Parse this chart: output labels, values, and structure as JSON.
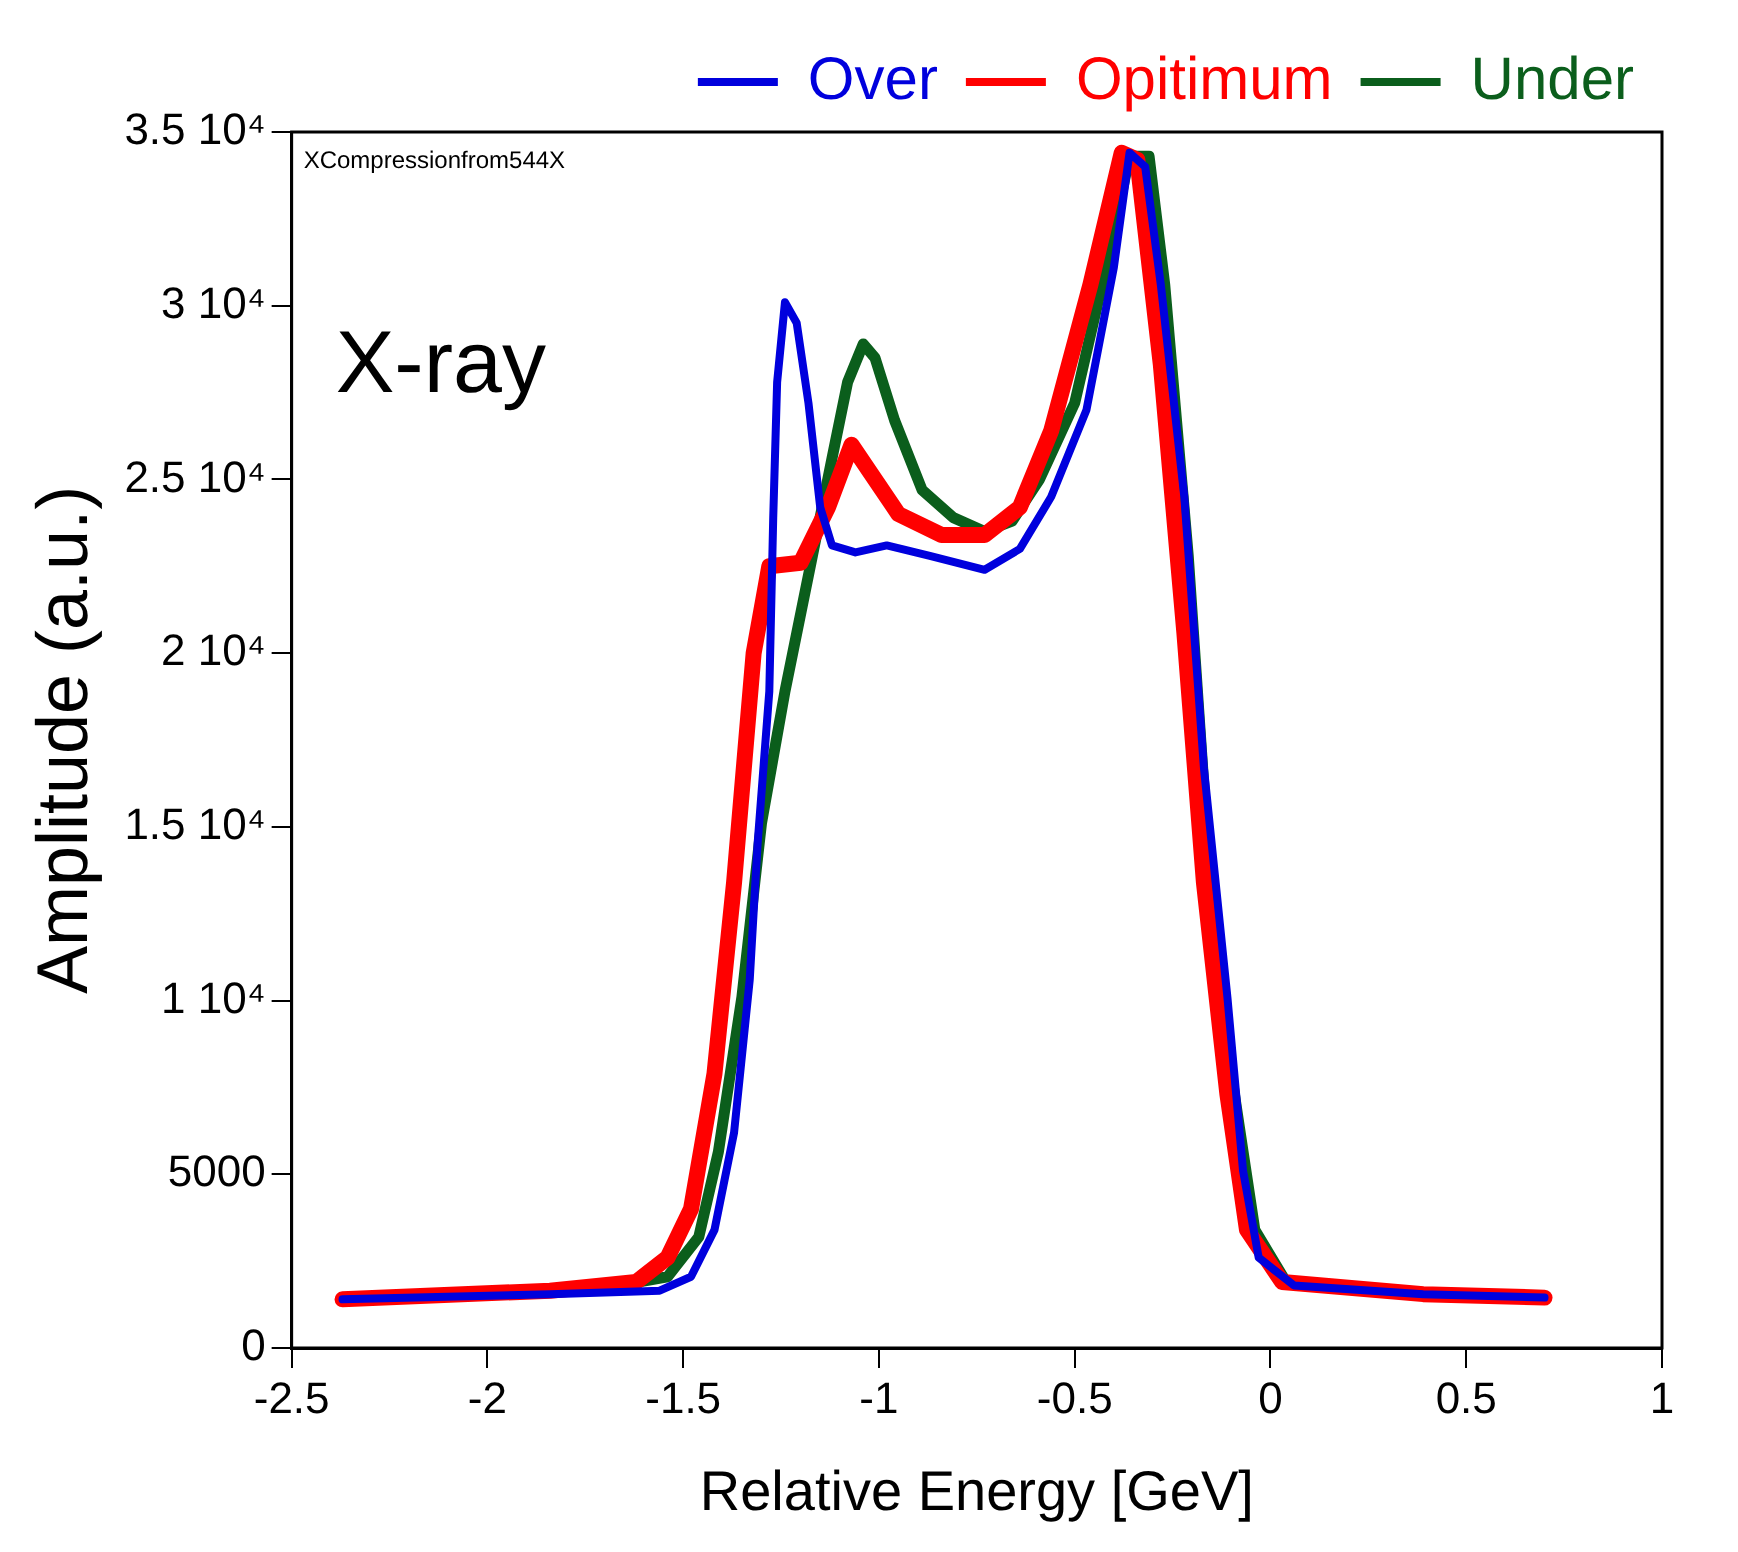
{
  "chart_data": {
    "type": "line",
    "xlabel": "Relative Energy [GeV]",
    "ylabel": "Amplitude (a.u.)",
    "annotations": [
      "XCompressionfrom544X",
      "X-ray"
    ],
    "xlim": [
      -2.5,
      1
    ],
    "ylim": [
      0,
      35000
    ],
    "xticks": [
      -2.5,
      -2,
      -1.5,
      -1,
      -0.5,
      0,
      0.5,
      1
    ],
    "yticks": [
      0,
      5000,
      {
        "value": 10000,
        "label": "1 10⁴"
      },
      {
        "value": 15000,
        "label": "1.5 10⁴"
      },
      {
        "value": 20000,
        "label": "2 10⁴"
      },
      {
        "value": 25000,
        "label": "2.5 10⁴"
      },
      {
        "value": 30000,
        "label": "3 10⁴"
      },
      {
        "value": 35000,
        "label": "3.5 10⁴"
      }
    ],
    "legend": "top right",
    "marker": "none",
    "line_style": "solid",
    "series": [
      {
        "name": "Over",
        "color": "#0000dd",
        "x": [
          -2.37,
          -1.84,
          -1.56,
          -1.48,
          -1.42,
          -1.37,
          -1.33,
          -1.31,
          -1.28,
          -1.27,
          -1.26,
          -1.24,
          -1.21,
          -1.18,
          -1.15,
          -1.12,
          -1.06,
          -0.98,
          -0.87,
          -0.73,
          -0.64,
          -0.56,
          -0.47,
          -0.4,
          -0.36,
          -0.32,
          -0.28,
          -0.22,
          -0.17,
          -0.11,
          -0.07,
          -0.03,
          0.06,
          0.39,
          0.7
        ],
        "values": [
          1400,
          1550,
          1650,
          2050,
          3400,
          6200,
          10600,
          14500,
          18900,
          23900,
          27800,
          30100,
          29500,
          27200,
          24200,
          23100,
          22900,
          23100,
          22800,
          22400,
          23000,
          24500,
          27000,
          31100,
          34400,
          34000,
          30600,
          24500,
          16700,
          10100,
          5100,
          2600,
          1800,
          1550,
          1450
        ]
      },
      {
        "name": "Opitimum",
        "color": "#ff0000",
        "x": [
          -2.37,
          -1.84,
          -1.62,
          -1.54,
          -1.48,
          -1.42,
          -1.37,
          -1.32,
          -1.28,
          -1.2,
          -1.13,
          -1.07,
          -1.01,
          -0.95,
          -0.84,
          -0.73,
          -0.64,
          -0.56,
          -0.46,
          -0.38,
          -0.34,
          -0.28,
          -0.22,
          -0.17,
          -0.11,
          -0.06,
          0.03,
          0.39,
          0.7
        ],
        "values": [
          1400,
          1650,
          1900,
          2600,
          4000,
          7900,
          13400,
          20000,
          22500,
          22600,
          24200,
          26000,
          25000,
          24000,
          23400,
          23400,
          24200,
          26400,
          30600,
          34400,
          34200,
          28300,
          20600,
          13400,
          7300,
          3400,
          1900,
          1550,
          1450
        ]
      },
      {
        "name": "Under",
        "color": "#0b5e1c",
        "x": [
          -2.37,
          -1.84,
          -1.68,
          -1.54,
          -1.46,
          -1.41,
          -1.35,
          -1.3,
          -1.24,
          -1.17,
          -1.12,
          -1.08,
          -1.04,
          -1.01,
          -0.96,
          -0.89,
          -0.81,
          -0.73,
          -0.66,
          -0.59,
          -0.5,
          -0.42,
          -0.36,
          -0.31,
          -0.27,
          -0.21,
          -0.16,
          -0.1,
          -0.04,
          0.04,
          0.39,
          0.7
        ],
        "values": [
          1400,
          1600,
          1770,
          2050,
          3200,
          5650,
          10100,
          15100,
          18900,
          22800,
          25600,
          27800,
          28900,
          28500,
          26700,
          24700,
          23900,
          23500,
          23800,
          25000,
          27200,
          31100,
          34300,
          34300,
          30600,
          22800,
          14500,
          7900,
          3400,
          1900,
          1550,
          1450
        ]
      }
    ]
  }
}
